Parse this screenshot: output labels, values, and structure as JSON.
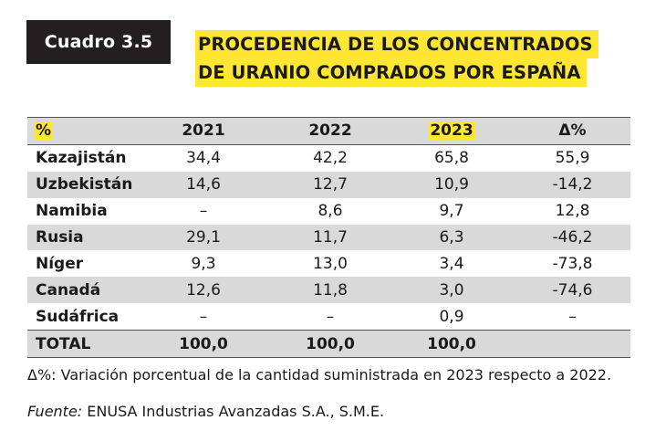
{
  "badge": {
    "label": "Cuadro 3.5"
  },
  "title": {
    "line1": "PROCEDENCIA DE LOS CONCENTRADOS",
    "line2": "DE URANIO COMPRADOS POR ESPAÑA"
  },
  "table": {
    "headers": [
      "%",
      "2021",
      "2022",
      "2023",
      "Δ%"
    ],
    "rows": [
      [
        "Kazajistán",
        "34,4",
        "42,2",
        "65,8",
        "55,9"
      ],
      [
        "Uzbekistán",
        "14,6",
        "12,7",
        "10,9",
        "-14,2"
      ],
      [
        "Namibia",
        "–",
        "8,6",
        "9,7",
        "12,8"
      ],
      [
        "Rusia",
        "29,1",
        "11,7",
        "6,3",
        "-46,2"
      ],
      [
        "Níger",
        "9,3",
        "13,0",
        "3,4",
        "-73,8"
      ],
      [
        "Canadá",
        "12,6",
        "11,8",
        "3,0",
        "-74,6"
      ],
      [
        "Sudáfrica",
        "–",
        "–",
        "0,9",
        "–"
      ],
      [
        "TOTAL",
        "100,0",
        "100,0",
        "100,0",
        ""
      ]
    ]
  },
  "note": "Δ%: Variación porcentual de la cantidad suministrada en 2023 respecto a 2022.",
  "source": {
    "label": "Fuente:",
    "text": " ENUSA Industrias Avanzadas S.A., S.M.E."
  },
  "colors": {
    "highlight": "#ffe633",
    "badge_bg": "#231f20",
    "row_shade": "#d9d9d9"
  }
}
